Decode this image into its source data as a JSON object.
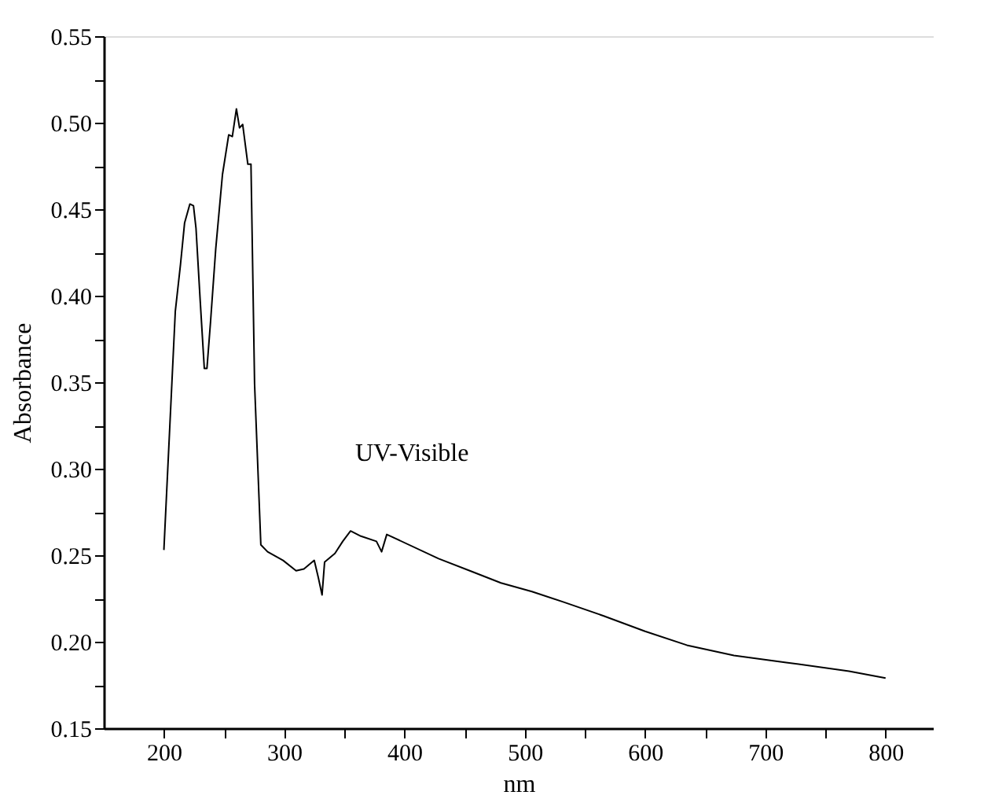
{
  "chart_data": {
    "type": "line",
    "xlabel": "nm",
    "ylabel": "Absorbance",
    "annotations": [
      "UV-Visible"
    ],
    "xlim": [
      150,
      840
    ],
    "xticks": [
      200,
      {
        "value": 250,
        "label": null
      },
      300,
      {
        "value": 350,
        "label": null
      },
      400,
      {
        "value": 450,
        "label": null
      },
      500,
      {
        "value": 550,
        "label": null
      },
      600,
      {
        "value": 650,
        "label": null
      },
      700,
      {
        "value": 750,
        "label": null
      },
      800
    ],
    "ylim": [
      0.15,
      0.55
    ],
    "yticks": [
      0.15,
      {
        "value": 0.175,
        "label": null
      },
      {
        "value": 0.2,
        "label": "0.20"
      },
      {
        "value": 0.225,
        "label": null
      },
      0.25,
      {
        "value": 0.275,
        "label": null
      },
      {
        "value": 0.3,
        "label": "0.30"
      },
      {
        "value": 0.325,
        "label": null
      },
      0.35,
      {
        "value": 0.375,
        "label": null
      },
      {
        "value": 0.4,
        "label": "0.40"
      },
      {
        "value": 0.425,
        "label": null
      },
      0.45,
      {
        "value": 0.475,
        "label": null
      },
      {
        "value": 0.5,
        "label": "0.50"
      },
      {
        "value": 0.525,
        "label": null
      },
      0.55
    ],
    "grid": false,
    "marker": "none",
    "line_style": "solid",
    "series": [
      {
        "color": "#000000",
        "x": [
          200,
          209.5,
          213.8,
          217.2,
          221.6,
          224.6,
          226.7,
          230.2,
          233.6,
          235.8,
          238.8,
          243.1,
          248.7,
          253.9,
          256.9,
          260.3,
          262.9,
          265.5,
          269.8,
          272.4,
          275.4,
          280.6,
          286.2,
          299.1,
          309.9,
          316.4,
          325,
          328.4,
          331.5,
          333.6,
          342.2,
          348.7,
          355.2,
          363.8,
          376.7,
          381,
          385.3,
          428.4,
          454.3,
          480.2,
          506,
          531.9,
          565.2,
          600,
          634.8,
          673.9,
          717.4,
          769.6,
          800
        ],
        "values": [
          0.253,
          0.391,
          0.418,
          0.442,
          0.453,
          0.452,
          0.439,
          0.397,
          0.358,
          0.358,
          0.385,
          0.427,
          0.47,
          0.493,
          0.492,
          0.508,
          0.497,
          0.499,
          0.476,
          0.476,
          0.349,
          0.256,
          0.252,
          0.247,
          0.241,
          0.242,
          0.247,
          0.237,
          0.227,
          0.246,
          0.251,
          0.258,
          0.264,
          0.261,
          0.258,
          0.252,
          0.262,
          0.248,
          0.241,
          0.234,
          0.229,
          0.223,
          0.215,
          0.206,
          0.198,
          0.192,
          0.188,
          0.183,
          0.179
        ]
      }
    ]
  }
}
